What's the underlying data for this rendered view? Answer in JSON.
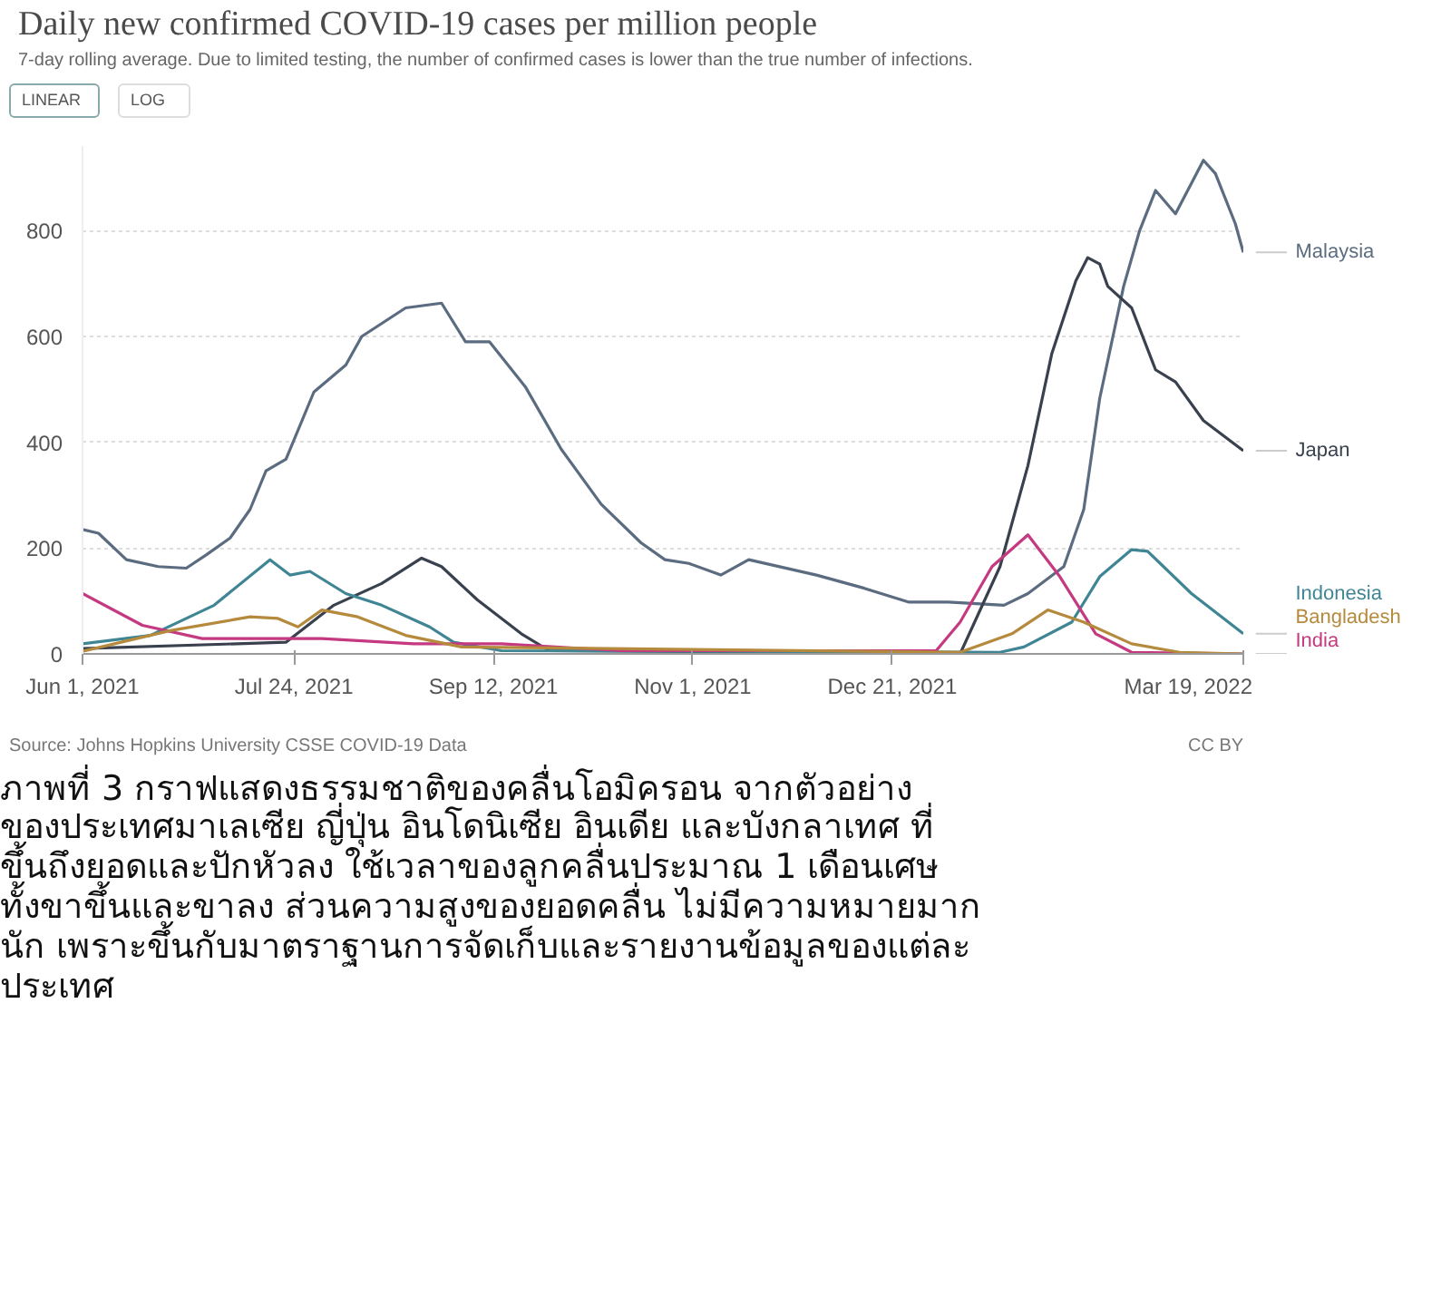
{
  "chart_data": {
    "type": "line",
    "title": "Daily new confirmed COVID-19 cases per million people",
    "subtitle": "7-day rolling average. Due to limited testing, the number of confirmed cases is lower than the true number of infections.",
    "annotations": [
      "LINEAR",
      "LOG",
      "Source: Johns Hopkins University CSSE COVID-19 Data",
      "CC BY",
      "ภาพที่ 3 กราฟแสดงธรรมชาติของคลื่นโอมิครอน จากตัวอย่าง",
      "ของประเทศมาเลเซีย ญี่ปุ่น อินโดนิเซีย อินเดีย และบังกลาเทศ ที่",
      "ขึ้นถึงยอดและปักหัวลง ใช้เวลาของลูกคลื่นประมาณ 1 เดือนเศษ",
      "ทั้งขาขึ้นและขาลง ส่วนความสูงของยอดคลื่น ไม่มีความหมายมาก",
      "นัก เพราะขึ้นกับมาตราฐานการจัดเก็บและรายงานข้อมูลของแต่ละ",
      "ประเทศ"
    ],
    "xlim": [
      "2021-06-01",
      "2022-03-19"
    ],
    "xticks": [
      {
        "value": "2021-06-01",
        "label": "Jun 1, 2021"
      },
      {
        "value": "2021-07-24",
        "label": "Jul 24, 2021"
      },
      {
        "value": "2021-09-12",
        "label": "Sep 12, 2021"
      },
      {
        "value": "2021-11-01",
        "label": "Nov 1, 2021"
      },
      {
        "value": "2021-12-21",
        "label": "Dec 21, 2021"
      },
      {
        "value": "2022-03-19",
        "label": "Mar 19, 2022"
      }
    ],
    "ylim": [
      0,
      960
    ],
    "yticks": [
      0,
      200,
      400,
      600,
      800
    ],
    "grid": "y",
    "series": [
      {
        "name": "Malaysia",
        "color": "#5b6b80",
        "x": [
          "2021-06-01",
          "2021-06-05",
          "2021-06-12",
          "2021-06-20",
          "2021-06-27",
          "2021-07-02",
          "2021-07-08",
          "2021-07-13",
          "2021-07-17",
          "2021-07-22",
          "2021-07-29",
          "2021-08-06",
          "2021-08-10",
          "2021-08-21",
          "2021-08-30",
          "2021-09-05",
          "2021-09-11",
          "2021-09-20",
          "2021-09-29",
          "2021-10-09",
          "2021-10-19",
          "2021-10-25",
          "2021-10-31",
          "2021-11-08",
          "2021-11-15",
          "2021-12-02",
          "2021-12-14",
          "2021-12-25",
          "2022-01-04",
          "2022-01-18",
          "2022-01-24",
          "2022-02-02",
          "2022-02-07",
          "2022-02-11",
          "2022-02-17",
          "2022-02-21",
          "2022-02-25",
          "2022-03-02",
          "2022-03-09",
          "2022-03-12",
          "2022-03-17",
          "2022-03-19"
        ],
        "values": [
          235,
          228,
          178,
          165,
          162,
          187,
          219,
          273,
          346,
          368,
          495,
          546,
          600,
          654,
          663,
          590,
          590,
          505,
          387,
          283,
          210,
          178,
          171,
          149,
          178,
          149,
          124,
          98,
          98,
          92,
          114,
          165,
          273,
          483,
          695,
          800,
          876,
          832,
          933,
          908,
          813,
          759
        ]
      },
      {
        "name": "Japan",
        "color": "#39414f",
        "x": [
          "2021-06-01",
          "2021-07-22",
          "2021-08-03",
          "2021-08-15",
          "2021-08-25",
          "2021-08-30",
          "2021-09-08",
          "2021-09-19",
          "2021-09-26",
          "2021-12-21",
          "2022-01-07",
          "2022-01-17",
          "2022-01-24",
          "2022-01-30",
          "2022-02-05",
          "2022-02-08",
          "2022-02-11",
          "2022-02-13",
          "2022-02-19",
          "2022-02-25",
          "2022-03-02",
          "2022-03-09",
          "2022-03-19"
        ],
        "values": [
          10,
          22,
          92,
          133,
          181,
          165,
          102,
          38,
          6,
          2,
          0,
          165,
          356,
          568,
          705,
          749,
          737,
          695,
          654,
          537,
          514,
          441,
          384
        ]
      },
      {
        "name": "Indonesia",
        "color": "#3f8594",
        "x": [
          "2021-06-01",
          "2021-06-18",
          "2021-07-04",
          "2021-07-18",
          "2021-07-23",
          "2021-07-28",
          "2021-08-06",
          "2021-08-15",
          "2021-08-27",
          "2021-09-02",
          "2021-09-14",
          "2022-01-17",
          "2022-01-23",
          "2022-02-04",
          "2022-02-11",
          "2022-02-19",
          "2022-02-23",
          "2022-03-06",
          "2022-03-19"
        ],
        "values": [
          19,
          35,
          92,
          178,
          149,
          156,
          114,
          92,
          51,
          22,
          6,
          3,
          13,
          60,
          146,
          197,
          194,
          114,
          38
        ]
      },
      {
        "name": "India",
        "color": "#c4397f",
        "x": [
          "2021-06-01",
          "2021-06-16",
          "2021-07-01",
          "2021-07-31",
          "2021-08-23",
          "2021-09-14",
          "2021-10-14",
          "2022-01-01",
          "2022-01-07",
          "2022-01-15",
          "2022-01-24",
          "2022-02-01",
          "2022-02-10",
          "2022-02-19",
          "2022-03-19"
        ],
        "values": [
          114,
          54,
          29,
          29,
          19,
          19,
          6,
          6,
          60,
          165,
          225,
          146,
          38,
          3,
          0
        ]
      },
      {
        "name": "Bangladesh",
        "color": "#b58a3d",
        "x": [
          "2021-06-01",
          "2021-06-23",
          "2021-07-13",
          "2021-07-20",
          "2021-07-25",
          "2021-07-31",
          "2021-08-09",
          "2021-08-21",
          "2021-09-04",
          "2022-01-07",
          "2022-01-20",
          "2022-01-29",
          "2022-02-07",
          "2022-02-19",
          "2022-03-03",
          "2022-03-19"
        ],
        "values": [
          5,
          44,
          70,
          67,
          51,
          83,
          70,
          35,
          13,
          3,
          38,
          83,
          60,
          19,
          3,
          0
        ]
      }
    ]
  }
}
